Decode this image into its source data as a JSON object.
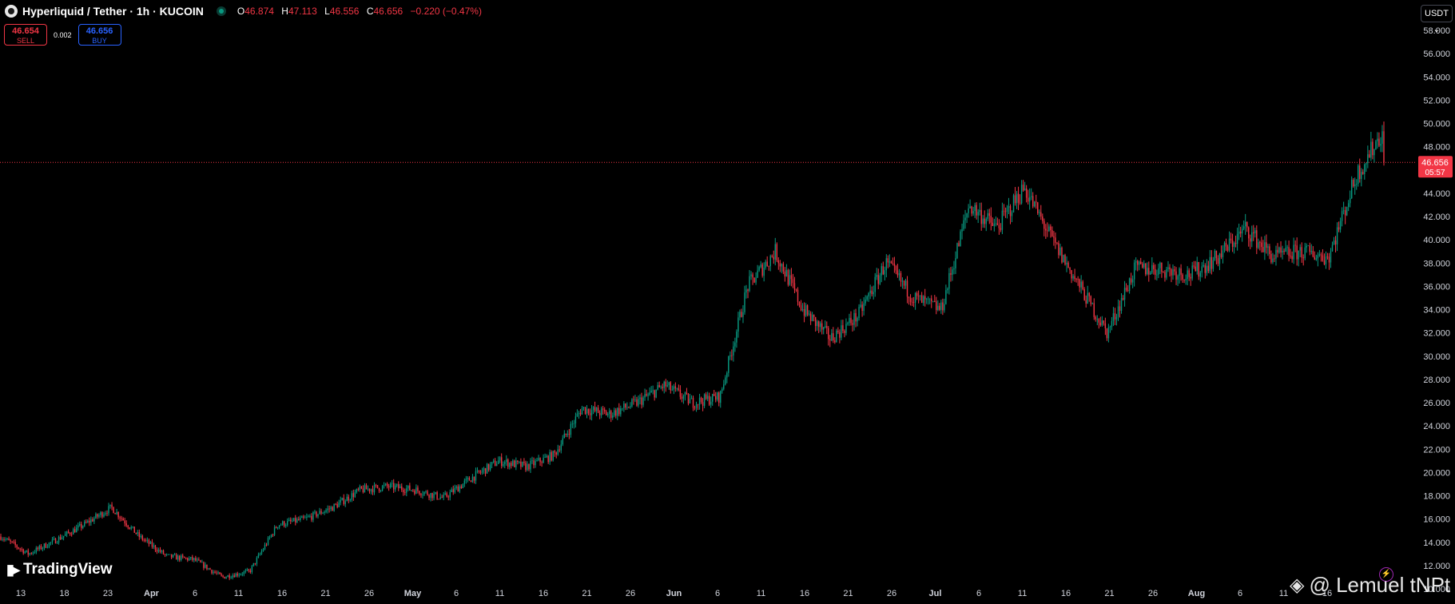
{
  "header": {
    "symbol_title": "Hyperliquid / Tether · 1h · KUCOIN",
    "open_label": "O",
    "open": "46.874",
    "high_label": "H",
    "high": "47.113",
    "low_label": "L",
    "low": "46.556",
    "close_label": "C",
    "close": "46.656",
    "change": "−0.220 (−0.47%)"
  },
  "trade": {
    "sell_price": "46.654",
    "sell_label": "SELL",
    "spread": "0.002",
    "buy_price": "46.656",
    "buy_label": "BUY"
  },
  "currency_button": "USDT ⌄",
  "branding": {
    "tv_text": "TradingView",
    "watermark": "@ Lemuel tNPt"
  },
  "colors": {
    "up": "#089981",
    "down": "#f23645",
    "background": "#000000",
    "price_line": "#f23645"
  },
  "chart_data": {
    "type": "line",
    "style": "candlestick",
    "grid": false,
    "ylim": [
      9,
      59
    ],
    "y_ticks": [
      "58.000",
      "56.000",
      "54.000",
      "52.000",
      "50.000",
      "48.000",
      "46.000",
      "44.000",
      "42.000",
      "40.000",
      "38.000",
      "36.000",
      "34.000",
      "32.000",
      "30.000",
      "28.000",
      "26.000",
      "24.000",
      "22.000",
      "20.000",
      "18.000",
      "16.000",
      "14.000",
      "12.000",
      "10.000"
    ],
    "x_ticks": [
      "13",
      "18",
      "23",
      "Apr",
      "6",
      "11",
      "16",
      "21",
      "26",
      "May",
      "6",
      "11",
      "16",
      "21",
      "26",
      "Jun",
      "6",
      "11",
      "16",
      "21",
      "26",
      "Jul",
      "6",
      "11",
      "16",
      "21",
      "26",
      "Aug",
      "6",
      "11",
      "16"
    ],
    "last_price": "46.656",
    "countdown": "05:57",
    "x": [
      "Mar 11",
      "Mar 15",
      "Mar 19",
      "Mar 23",
      "Mar 27",
      "Mar 31",
      "Apr 4",
      "Apr 8",
      "Apr 12",
      "Apr 16",
      "Apr 20",
      "Apr 24",
      "Apr 28",
      "May 2",
      "May 6",
      "May 10",
      "May 14",
      "May 18",
      "May 21",
      "May 23",
      "May 26",
      "May 29",
      "Jun 1",
      "Jun 4",
      "Jun 7",
      "Jun 10",
      "Jun 13",
      "Jun 16",
      "Jun 19",
      "Jun 21",
      "Jun 24",
      "Jun 27",
      "Jul 1",
      "Jul 4",
      "Jul 7",
      "Jul 10",
      "Jul 13",
      "Jul 15",
      "Jul 18",
      "Jul 21",
      "Jul 24",
      "Jul 27",
      "Jul 30",
      "Aug 2",
      "Aug 4",
      "Aug 6",
      "Aug 8",
      "Aug 11",
      "Aug 13",
      "Aug 15",
      "Aug 17"
    ],
    "series": [
      {
        "values": [
          14.5,
          13.0,
          14.2,
          15.5,
          17.0,
          14.5,
          12.8,
          12.5,
          11.0,
          11.5,
          15.5,
          16.0,
          17.0,
          18.5,
          18.8,
          18.5,
          17.8,
          19.5,
          21.0,
          20.5,
          21.5,
          25.5,
          25.0,
          26.0,
          27.5,
          26.0,
          26.5,
          36.0,
          39.0,
          34.0,
          31.5,
          33.5,
          38.0,
          35.0,
          34.0,
          43.0,
          41.0,
          44.5,
          40.0,
          36.0,
          32.0,
          37.5,
          37.5,
          37.0,
          38.5,
          41.0,
          38.5,
          39.0,
          38.5,
          45.5,
          49.5
        ]
      }
    ]
  }
}
